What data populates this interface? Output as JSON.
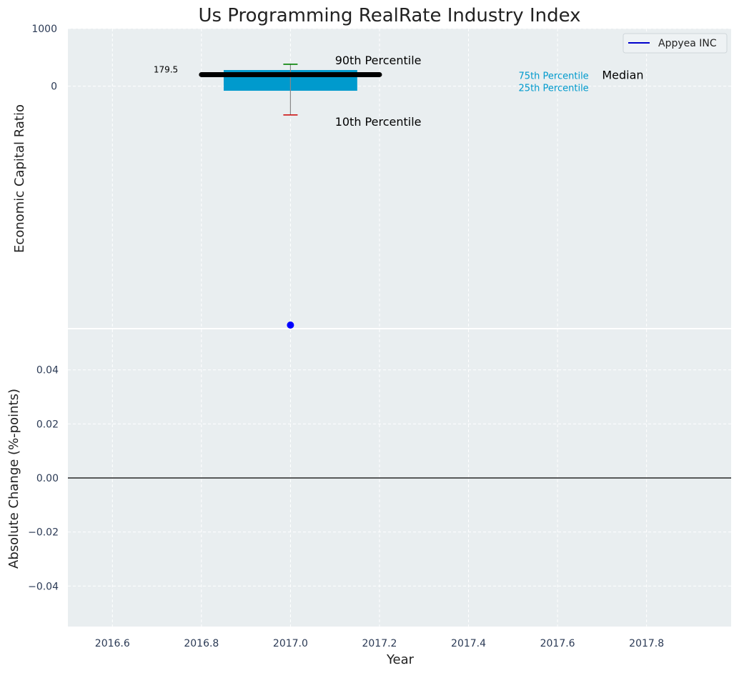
{
  "chart_data": [
    {
      "type": "box",
      "title": "Us Programming RealRate Industry Index",
      "xlabel": "",
      "ylabel": "Economic Capital Ratio",
      "xlim": [
        2016.5,
        2017.99
      ],
      "ylim": [
        -4200,
        1000
      ],
      "y_ticks": [
        0,
        1000
      ],
      "y_tick_labels": [
        "0",
        "1000"
      ],
      "grid": true,
      "legend": {
        "entries": [
          "Appyea INC"
        ],
        "placement": "top-right",
        "color": "#0000cc"
      },
      "box": {
        "x": 2017.0,
        "percentile_10": -500,
        "percentile_25": -80,
        "median": 200,
        "percentile_75": 280,
        "percentile_90": 380,
        "value_label": "179.5"
      },
      "company_point": {
        "x": 2017.0,
        "y": -4200,
        "color": "#0000ff"
      },
      "annotations": {
        "p90": "90th Percentile",
        "p10": "10th Percentile",
        "p75": "75th Percentile",
        "p25": "25th Percentile",
        "median": "Median"
      },
      "colors": {
        "box": "#009acd",
        "median": "#000000",
        "p90_cap": "#008000",
        "p10_cap": "#cc0000",
        "whisker": "#888888",
        "legend_key": "#00a0c8"
      }
    },
    {
      "type": "line",
      "xlabel": "Year",
      "ylabel": "Absolute Change (%-points)",
      "xlim": [
        2016.5,
        2017.99
      ],
      "ylim": [
        -0.055,
        0.055
      ],
      "x_ticks": [
        2016.6,
        2016.8,
        2017.0,
        2017.2,
        2017.4,
        2017.6,
        2017.8
      ],
      "x_tick_labels": [
        "2016.6",
        "2016.8",
        "2017.0",
        "2017.2",
        "2017.4",
        "2017.6",
        "2017.8"
      ],
      "y_ticks": [
        -0.04,
        -0.02,
        0.0,
        0.02,
        0.04
      ],
      "y_tick_labels": [
        "−0.04",
        "−0.02",
        "0.00",
        "0.02",
        "0.04"
      ],
      "zero_line": 0,
      "grid": true
    }
  ]
}
